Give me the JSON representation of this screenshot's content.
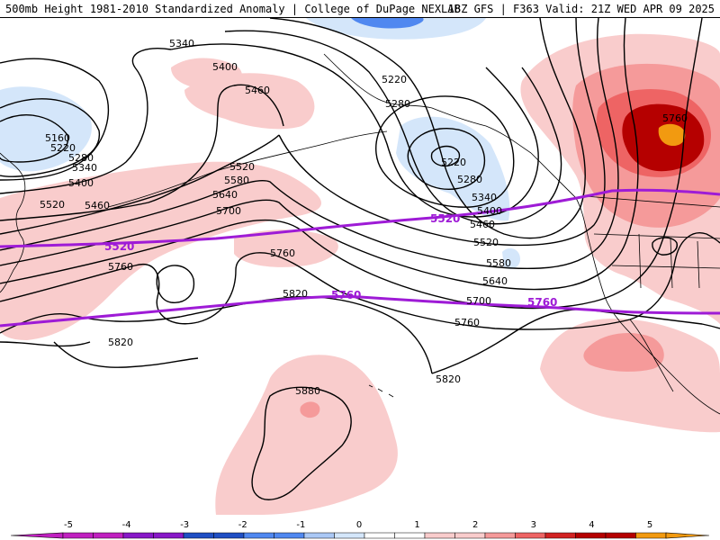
{
  "header": {
    "title_left": "500mb Height 1981-2010 Standardized Anomaly | College of DuPage NEXLAB",
    "title_right": "18Z GFS | F363 Valid: 21Z WED APR 09 2025"
  },
  "colors": {
    "neg5": "#c020c0",
    "neg4": "#8818c8",
    "neg3": "#1f4fc4",
    "neg2": "#5088f0",
    "neg1": "#aac8f5",
    "neg05": "#d4e6fa",
    "zero": "#ffffff",
    "pos05": "#f9cccc",
    "pos1": "#f59a9a",
    "pos2": "#ee6464",
    "pos3": "#d22222",
    "pos4": "#b50000",
    "pos5": "#f29a10",
    "climo_line": "#9e1bd6"
  },
  "contour_labels": [
    "5340",
    "5400",
    "5460",
    "5160",
    "5220",
    "5280",
    "5340",
    "5400",
    "5460",
    "5220",
    "5280",
    "5220",
    "5280",
    "5340",
    "5400",
    "5460",
    "5520",
    "5580",
    "5640",
    "5700",
    "5760",
    "5520",
    "5580",
    "5640",
    "5700",
    "5760",
    "5820",
    "5820",
    "5880",
    "5760",
    "5520"
  ],
  "climo_labels": [
    "5520",
    "5760",
    "5520",
    "5760"
  ],
  "legend": {
    "ticks": [
      "-5",
      "-4",
      "-3",
      "-2",
      "-1",
      "0",
      "1",
      "2",
      "3",
      "4",
      "5"
    ]
  }
}
